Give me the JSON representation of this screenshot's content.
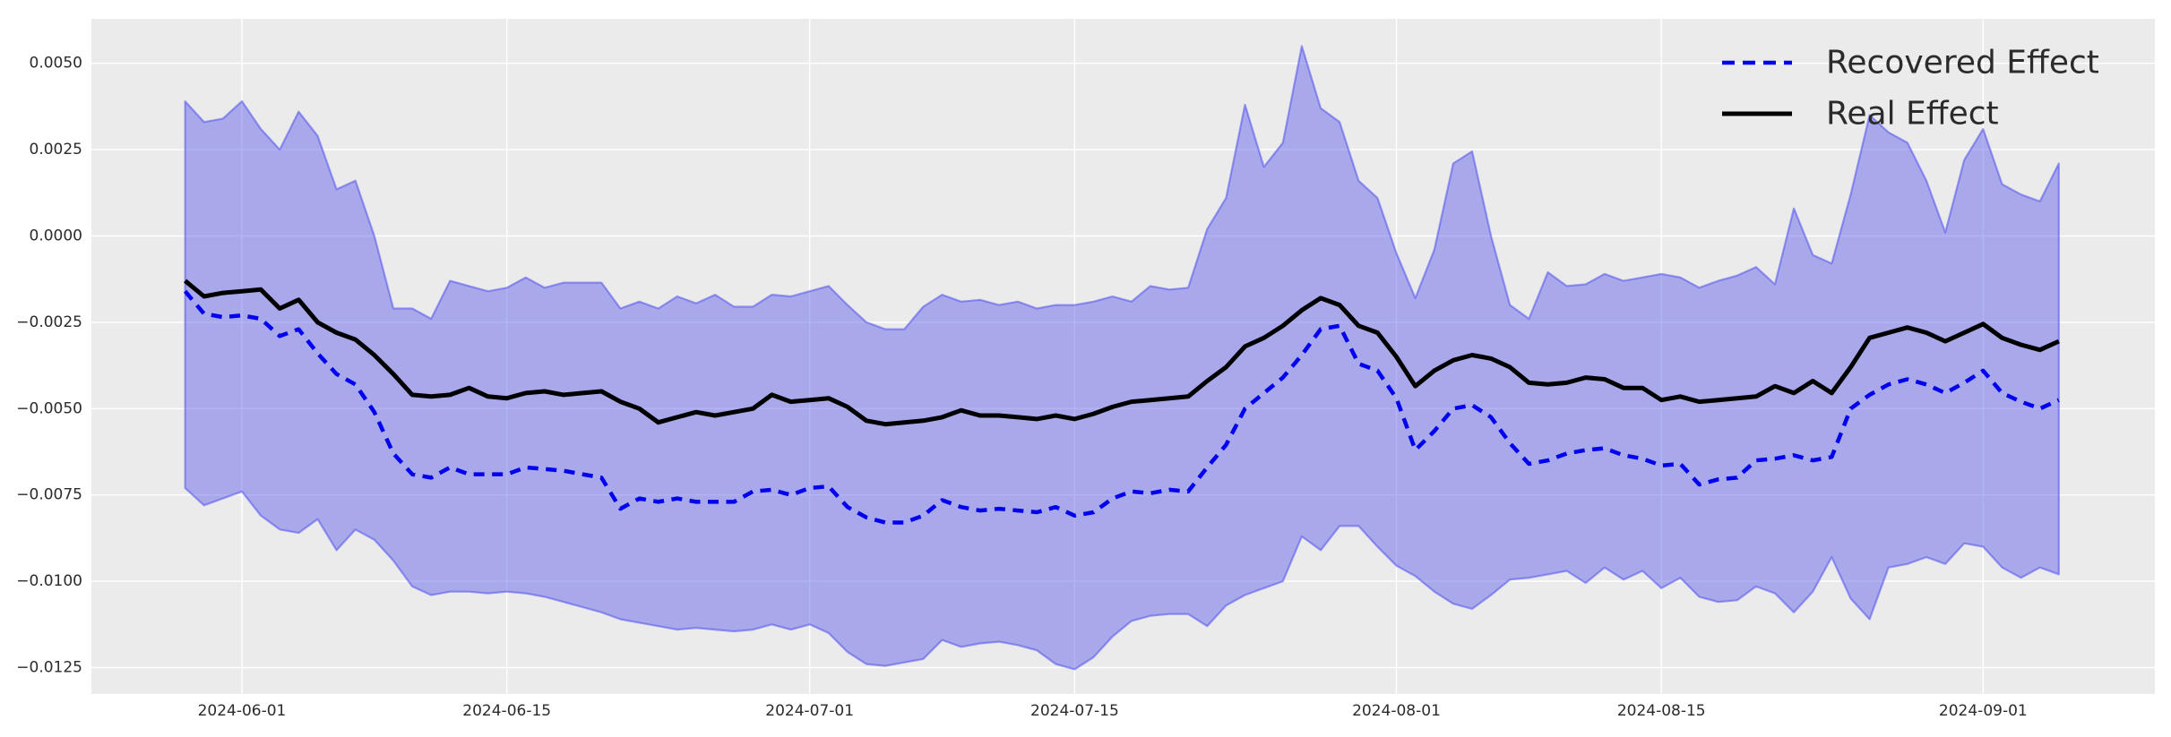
{
  "chart_data": {
    "type": "line",
    "title": "",
    "xlabel": "",
    "ylabel": "",
    "grid": true,
    "legend_position": "upper right",
    "xlim": [
      "2024-05-24",
      "2024-09-10"
    ],
    "ylim": [
      -0.01327,
      0.00629
    ],
    "colors": {
      "figure_background": "#ffffff",
      "axes_background": "#ebebeb",
      "gridline": "#ffffff",
      "band_fill": "rgba(90,90,235,0.46)",
      "band_edge": "rgba(70,70,240,0.50)",
      "recovered_line": "#0000ee",
      "real_line": "#000000",
      "tick_text": "#2b2b2b",
      "legend_text": "#2b2b2b"
    },
    "yticks": {
      "values": [
        0.005,
        0.0025,
        0.0,
        -0.0025,
        -0.005,
        -0.0075,
        -0.01,
        -0.0125
      ],
      "labels": [
        "0.0050",
        "0.0025",
        "0.0000",
        "−0.0025",
        "−0.0050",
        "−0.0075",
        "−0.0100",
        "−0.0125"
      ]
    },
    "xticks": [
      {
        "index": 3,
        "label": "2024-06-01"
      },
      {
        "index": 17,
        "label": "2024-06-15"
      },
      {
        "index": 33,
        "label": "2024-07-01"
      },
      {
        "index": 47,
        "label": "2024-07-15"
      },
      {
        "index": 64,
        "label": "2024-08-01"
      },
      {
        "index": 78,
        "label": "2024-08-15"
      },
      {
        "index": 95,
        "label": "2024-09-01"
      }
    ],
    "x": [
      "2024-05-29",
      "2024-05-30",
      "2024-05-31",
      "2024-06-01",
      "2024-06-02",
      "2024-06-03",
      "2024-06-04",
      "2024-06-05",
      "2024-06-06",
      "2024-06-07",
      "2024-06-08",
      "2024-06-09",
      "2024-06-10",
      "2024-06-11",
      "2024-06-12",
      "2024-06-13",
      "2024-06-14",
      "2024-06-15",
      "2024-06-16",
      "2024-06-17",
      "2024-06-18",
      "2024-06-19",
      "2024-06-20",
      "2024-06-21",
      "2024-06-22",
      "2024-06-23",
      "2024-06-24",
      "2024-06-25",
      "2024-06-26",
      "2024-06-27",
      "2024-06-28",
      "2024-06-29",
      "2024-06-30",
      "2024-07-01",
      "2024-07-02",
      "2024-07-03",
      "2024-07-04",
      "2024-07-05",
      "2024-07-06",
      "2024-07-07",
      "2024-07-08",
      "2024-07-09",
      "2024-07-10",
      "2024-07-11",
      "2024-07-12",
      "2024-07-13",
      "2024-07-14",
      "2024-07-15",
      "2024-07-16",
      "2024-07-17",
      "2024-07-18",
      "2024-07-19",
      "2024-07-20",
      "2024-07-21",
      "2024-07-22",
      "2024-07-23",
      "2024-07-24",
      "2024-07-25",
      "2024-07-26",
      "2024-07-27",
      "2024-07-28",
      "2024-07-29",
      "2024-07-30",
      "2024-07-31",
      "2024-08-01",
      "2024-08-02",
      "2024-08-03",
      "2024-08-04",
      "2024-08-05",
      "2024-08-06",
      "2024-08-07",
      "2024-08-08",
      "2024-08-09",
      "2024-08-10",
      "2024-08-11",
      "2024-08-12",
      "2024-08-13",
      "2024-08-14",
      "2024-08-15",
      "2024-08-16",
      "2024-08-17",
      "2024-08-18",
      "2024-08-19",
      "2024-08-20",
      "2024-08-21",
      "2024-08-22",
      "2024-08-23",
      "2024-08-24",
      "2024-08-25",
      "2024-08-26",
      "2024-08-27",
      "2024-08-28",
      "2024-08-29",
      "2024-08-30",
      "2024-08-31",
      "2024-09-01",
      "2024-09-02",
      "2024-09-03",
      "2024-09-04",
      "2024-09-05"
    ],
    "series": [
      {
        "name": "Recovered Effect",
        "style": "dashed",
        "color": "#0000ee",
        "values": [
          -0.0016,
          -0.00225,
          -0.00235,
          -0.0023,
          -0.0024,
          -0.0029,
          -0.0027,
          -0.0034,
          -0.004,
          -0.0043,
          -0.0051,
          -0.0063,
          -0.0069,
          -0.007,
          -0.0067,
          -0.0069,
          -0.0069,
          -0.0069,
          -0.0067,
          -0.00675,
          -0.0068,
          -0.0069,
          -0.007,
          -0.0079,
          -0.0076,
          -0.0077,
          -0.0076,
          -0.0077,
          -0.0077,
          -0.0077,
          -0.0074,
          -0.00735,
          -0.0075,
          -0.0073,
          -0.00725,
          -0.00785,
          -0.00815,
          -0.0083,
          -0.0083,
          -0.0081,
          -0.00765,
          -0.00785,
          -0.00795,
          -0.0079,
          -0.00795,
          -0.008,
          -0.00785,
          -0.0081,
          -0.008,
          -0.0076,
          -0.0074,
          -0.00745,
          -0.00735,
          -0.0074,
          -0.0067,
          -0.00605,
          -0.005,
          -0.00455,
          -0.0041,
          -0.00345,
          -0.0027,
          -0.0026,
          -0.0037,
          -0.0039,
          -0.0047,
          -0.0062,
          -0.00565,
          -0.005,
          -0.0049,
          -0.00525,
          -0.006,
          -0.0066,
          -0.0065,
          -0.0063,
          -0.0062,
          -0.00615,
          -0.00635,
          -0.00645,
          -0.00665,
          -0.0066,
          -0.0072,
          -0.00705,
          -0.007,
          -0.0065,
          -0.00645,
          -0.00635,
          -0.0065,
          -0.0064,
          -0.005,
          -0.0046,
          -0.0043,
          -0.00415,
          -0.0043,
          -0.00455,
          -0.00425,
          -0.0039,
          -0.00455,
          -0.0048,
          -0.005,
          -0.00475
        ]
      },
      {
        "name": "Real Effect",
        "style": "solid",
        "color": "#000000",
        "values": [
          -0.0013,
          -0.00175,
          -0.00165,
          -0.0016,
          -0.00155,
          -0.0021,
          -0.00185,
          -0.0025,
          -0.0028,
          -0.003,
          -0.00345,
          -0.004,
          -0.0046,
          -0.00465,
          -0.0046,
          -0.0044,
          -0.00465,
          -0.0047,
          -0.00455,
          -0.0045,
          -0.0046,
          -0.00455,
          -0.0045,
          -0.0048,
          -0.005,
          -0.0054,
          -0.00525,
          -0.0051,
          -0.0052,
          -0.0051,
          -0.005,
          -0.0046,
          -0.0048,
          -0.00475,
          -0.0047,
          -0.00495,
          -0.00535,
          -0.00545,
          -0.0054,
          -0.00535,
          -0.00525,
          -0.00505,
          -0.0052,
          -0.0052,
          -0.00525,
          -0.0053,
          -0.0052,
          -0.0053,
          -0.00515,
          -0.00495,
          -0.0048,
          -0.00475,
          -0.0047,
          -0.00465,
          -0.0042,
          -0.0038,
          -0.0032,
          -0.00295,
          -0.0026,
          -0.00215,
          -0.0018,
          -0.002,
          -0.0026,
          -0.0028,
          -0.0035,
          -0.00435,
          -0.0039,
          -0.0036,
          -0.00345,
          -0.00355,
          -0.0038,
          -0.00425,
          -0.0043,
          -0.00425,
          -0.0041,
          -0.00415,
          -0.0044,
          -0.0044,
          -0.00475,
          -0.00465,
          -0.0048,
          -0.00475,
          -0.0047,
          -0.00465,
          -0.00435,
          -0.00455,
          -0.0042,
          -0.00455,
          -0.0038,
          -0.00295,
          -0.0028,
          -0.00265,
          -0.0028,
          -0.00305,
          -0.0028,
          -0.00255,
          -0.00295,
          -0.00315,
          -0.0033,
          -0.00305
        ]
      }
    ],
    "band": {
      "name": "confidence-interval",
      "upper": [
        0.0039,
        0.0033,
        0.0034,
        0.0039,
        0.0031,
        0.0025,
        0.0036,
        0.0029,
        0.00135,
        0.0016,
        0.0,
        -0.0021,
        -0.0021,
        -0.0024,
        -0.0013,
        -0.00145,
        -0.0016,
        -0.0015,
        -0.0012,
        -0.0015,
        -0.00135,
        -0.00135,
        -0.00135,
        -0.0021,
        -0.0019,
        -0.0021,
        -0.00175,
        -0.00195,
        -0.0017,
        -0.00205,
        -0.00205,
        -0.0017,
        -0.00175,
        -0.0016,
        -0.00145,
        -0.002,
        -0.0025,
        -0.0027,
        -0.0027,
        -0.00205,
        -0.0017,
        -0.0019,
        -0.00185,
        -0.002,
        -0.0019,
        -0.0021,
        -0.002,
        -0.002,
        -0.0019,
        -0.00175,
        -0.0019,
        -0.00145,
        -0.00155,
        -0.0015,
        0.0002,
        0.0011,
        0.0038,
        0.002,
        0.0027,
        0.0055,
        0.0037,
        0.0033,
        0.0016,
        0.0011,
        -0.0005,
        -0.0018,
        -0.0004,
        0.0021,
        0.00245,
        0.0,
        -0.002,
        -0.0024,
        -0.00105,
        -0.00145,
        -0.0014,
        -0.0011,
        -0.0013,
        -0.0012,
        -0.0011,
        -0.0012,
        -0.0015,
        -0.0013,
        -0.00115,
        -0.0009,
        -0.0014,
        0.0008,
        -0.00055,
        -0.0008,
        0.0012,
        0.0035,
        0.003,
        0.0027,
        0.0016,
        0.0001,
        0.0022,
        0.0031,
        0.0015,
        0.0012,
        0.001,
        0.0021
      ],
      "lower": [
        -0.0073,
        -0.0078,
        -0.0076,
        -0.0074,
        -0.0081,
        -0.0085,
        -0.0086,
        -0.0082,
        -0.0091,
        -0.0085,
        -0.0088,
        -0.0094,
        -0.01015,
        -0.0104,
        -0.0103,
        -0.0103,
        -0.01035,
        -0.0103,
        -0.01035,
        -0.01045,
        -0.0106,
        -0.01075,
        -0.0109,
        -0.0111,
        -0.0112,
        -0.0113,
        -0.0114,
        -0.01135,
        -0.0114,
        -0.01145,
        -0.0114,
        -0.01125,
        -0.0114,
        -0.01125,
        -0.0115,
        -0.01205,
        -0.0124,
        -0.01245,
        -0.01235,
        -0.01225,
        -0.0117,
        -0.0119,
        -0.0118,
        -0.01175,
        -0.01185,
        -0.012,
        -0.0124,
        -0.01255,
        -0.0122,
        -0.0116,
        -0.01115,
        -0.011,
        -0.01095,
        -0.01095,
        -0.0113,
        -0.0107,
        -0.0104,
        -0.0102,
        -0.01,
        -0.0087,
        -0.0091,
        -0.0084,
        -0.0084,
        -0.009,
        -0.00955,
        -0.00985,
        -0.0103,
        -0.01065,
        -0.0108,
        -0.0104,
        -0.00995,
        -0.0099,
        -0.0098,
        -0.0097,
        -0.01005,
        -0.0096,
        -0.00995,
        -0.0097,
        -0.0102,
        -0.0099,
        -0.01045,
        -0.0106,
        -0.01055,
        -0.01015,
        -0.01035,
        -0.0109,
        -0.0103,
        -0.0093,
        -0.0105,
        -0.0111,
        -0.0096,
        -0.0095,
        -0.0093,
        -0.0095,
        -0.0089,
        -0.009,
        -0.0096,
        -0.0099,
        -0.0096,
        -0.0098
      ]
    },
    "legend": [
      {
        "label": "Recovered Effect"
      },
      {
        "label": "Real Effect"
      }
    ]
  }
}
